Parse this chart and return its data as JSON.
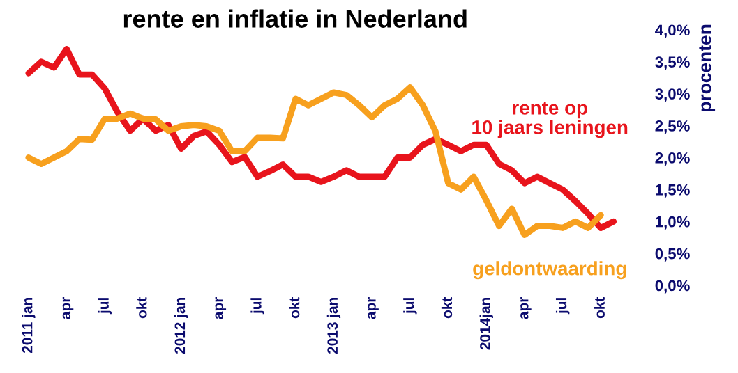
{
  "chart_data": {
    "type": "line",
    "title": "rente en inflatie in Nederland",
    "ylabel": "procenten",
    "categories": [
      "2011 jan",
      null,
      null,
      "apr",
      null,
      null,
      "jul",
      null,
      null,
      "okt",
      null,
      null,
      "2012 jan",
      null,
      null,
      "apr",
      null,
      null,
      "jul",
      null,
      null,
      "okt",
      null,
      null,
      "2013 jan",
      null,
      null,
      "apr",
      null,
      null,
      "jul",
      null,
      null,
      "okt",
      null,
      null,
      "2014jan",
      null,
      null,
      "apr",
      null,
      null,
      "jul",
      null,
      null,
      "okt",
      null
    ],
    "series": [
      {
        "name": "rente op\n10 jaars leningen",
        "color": "#e8141c",
        "values": [
          3.32,
          3.5,
          3.41,
          3.7,
          3.3,
          3.3,
          3.08,
          2.71,
          2.42,
          2.61,
          2.42,
          2.51,
          2.14,
          2.34,
          2.41,
          2.2,
          1.93,
          2.01,
          1.7,
          1.79,
          1.89,
          1.7,
          1.7,
          1.62,
          1.7,
          1.8,
          1.7,
          1.7,
          1.7,
          2.0,
          2.0,
          2.2,
          2.29,
          2.2,
          2.1,
          2.2,
          2.2,
          1.9,
          1.8,
          1.6,
          1.7,
          1.6,
          1.5,
          1.32,
          1.12,
          0.9,
          1.0
        ]
      },
      {
        "name": "geldontwaarding",
        "color": "#f7a01e",
        "values": [
          2.0,
          1.9,
          2.0,
          2.1,
          2.29,
          2.28,
          2.61,
          2.61,
          2.69,
          2.61,
          2.6,
          2.42,
          2.49,
          2.51,
          2.49,
          2.42,
          2.1,
          2.1,
          2.31,
          2.31,
          2.3,
          2.92,
          2.82,
          2.92,
          3.02,
          2.98,
          2.82,
          2.63,
          2.82,
          2.92,
          3.1,
          2.82,
          2.41,
          1.6,
          1.5,
          1.7,
          1.33,
          0.93,
          1.2,
          0.79,
          0.93,
          0.93,
          0.9,
          1.0,
          0.9,
          1.1,
          null
        ]
      }
    ],
    "ylim": [
      0,
      4
    ],
    "yticks": [
      {
        "value": 0,
        "label": "0,0%"
      },
      {
        "value": 0.5,
        "label": "0,5%"
      },
      {
        "value": 1,
        "label": "1,0%"
      },
      {
        "value": 1.5,
        "label": "1,5%"
      },
      {
        "value": 2,
        "label": "2,0%"
      },
      {
        "value": 2.5,
        "label": "2,5%"
      },
      {
        "value": 3,
        "label": "3,0%"
      },
      {
        "value": 3.5,
        "label": "3,5%"
      },
      {
        "value": 4,
        "label": "4,0%"
      }
    ],
    "grid": false,
    "legend": false,
    "marker": "none",
    "line_style": "solid"
  }
}
